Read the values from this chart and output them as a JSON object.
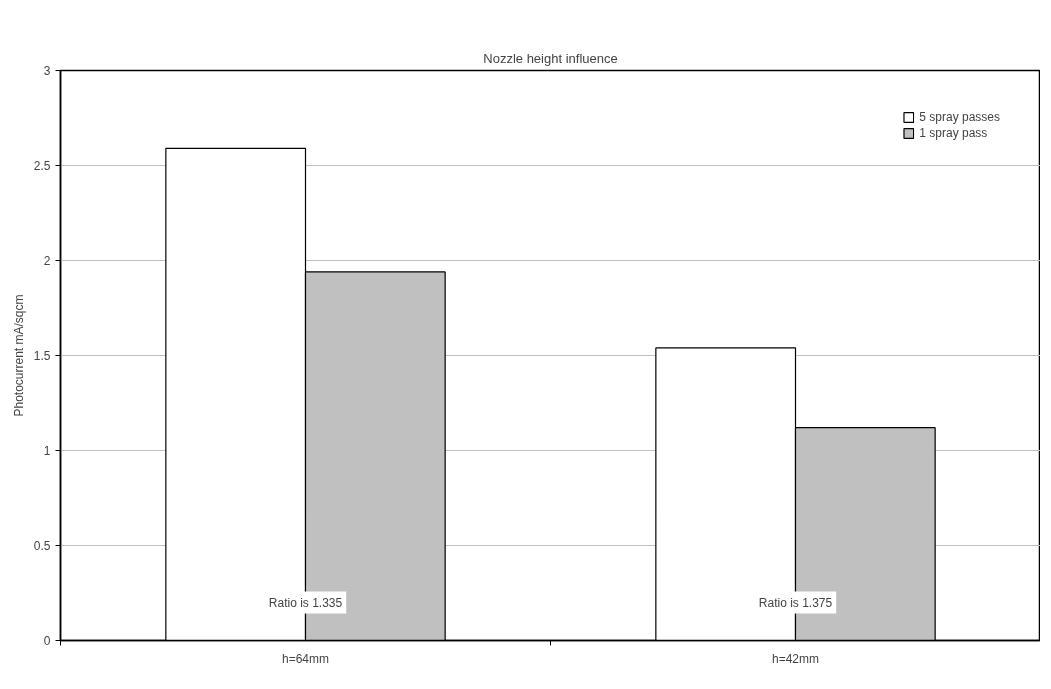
{
  "chart_data": {
    "type": "bar",
    "title": "Nozzle height influence",
    "ylabel": "Photocurrent mA/sqcm",
    "categories": [
      "h=64mm",
      "h=42mm"
    ],
    "series": [
      {
        "name": "5 spray passes",
        "color": "#ffffff",
        "values": [
          2.59,
          1.54
        ]
      },
      {
        "name": "1 spray pass",
        "color": "#c0c0c0",
        "values": [
          1.94,
          1.12
        ]
      }
    ],
    "ylim": [
      0,
      3
    ],
    "yticks": [
      0,
      0.5,
      1,
      1.5,
      2,
      2.5,
      3
    ],
    "grid": "y",
    "legend": "top right",
    "annotations": [
      {
        "text": "Ratio is 1.335",
        "x": "h=64mm",
        "y": 0.2
      },
      {
        "text": "Ratio is 1.375",
        "x": "h=42mm",
        "y": 0.2
      }
    ]
  }
}
